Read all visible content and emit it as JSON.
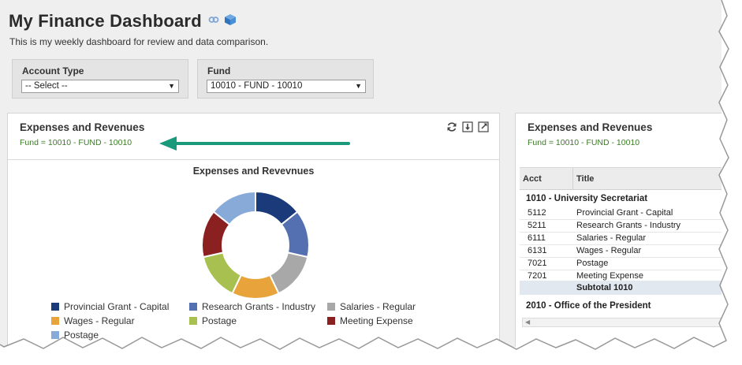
{
  "header": {
    "title": "My Finance Dashboard",
    "subtitle": "This is my weekly dashboard for review and data comparison."
  },
  "filters": [
    {
      "label": "Account Type",
      "value": "-- Select --"
    },
    {
      "label": "Fund",
      "value": "10010 - FUND - 10010"
    }
  ],
  "left_panel": {
    "title": "Expenses and Revenues",
    "filter_text": "Fund = 10010 - FUND - 10010",
    "chart_title": "Expenses and Revevnues"
  },
  "chart_data": {
    "type": "pie",
    "title": "Expenses and Revevnues",
    "categories": [
      "Provincial Grant - Capital",
      "Research Grants - Industry",
      "Salaries - Regular",
      "Wages - Regular",
      "Postage",
      "Meeting Expense",
      "Postage"
    ],
    "values": [
      14,
      14,
      14,
      14,
      14,
      14,
      14
    ],
    "colors": [
      "#1a3a7a",
      "#5470b0",
      "#a8a8a8",
      "#e8a33a",
      "#a8c050",
      "#8a2020",
      "#88aad8"
    ],
    "legend": "bottom"
  },
  "right_panel": {
    "title": "Expenses and Revenues",
    "filter_text": "Fund = 10010 - FUND - 10010",
    "columns": [
      "Acct",
      "Title"
    ],
    "groups": [
      {
        "name": "1010 - University Secretariat",
        "rows": [
          {
            "acct": "5112",
            "title": "Provincial Grant - Capital"
          },
          {
            "acct": "5211",
            "title": "Research Grants - Industry"
          },
          {
            "acct": "6111",
            "title": "Salaries - Regular"
          },
          {
            "acct": "6131",
            "title": "Wages - Regular"
          },
          {
            "acct": "7021",
            "title": "Postage"
          },
          {
            "acct": "7201",
            "title": "Meeting Expense"
          }
        ],
        "subtotal": "Subtotal 1010"
      },
      {
        "name": "2010 - Office of the President",
        "rows": []
      }
    ]
  },
  "icons": {
    "link": "link-icon",
    "cube": "cube-icon",
    "refresh": "refresh-icon",
    "download": "download-icon",
    "expand": "expand-icon"
  },
  "annotation_color": "#1a9a7a"
}
